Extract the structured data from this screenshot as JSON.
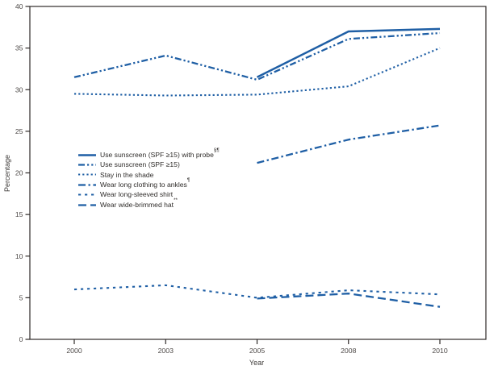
{
  "chart_data": {
    "type": "line",
    "title": "",
    "xlabel": "Year",
    "ylabel": "Percentage",
    "categories": [
      "2000",
      "2003",
      "2005",
      "2008",
      "2010"
    ],
    "ylim": [
      0,
      40
    ],
    "yticks": [
      0,
      5,
      10,
      15,
      20,
      25,
      30,
      35,
      40
    ],
    "grid": false,
    "legend_position": "inside-left-middle",
    "line_color": "#1f5fa5",
    "axis_color": "#2e2a28",
    "series": [
      {
        "id": "sunscreen-probe",
        "label": "Use sunscreen (SPF ≥15) with probe",
        "sup": "§¶",
        "dash": "",
        "width": 2.5,
        "values": [
          null,
          null,
          31.5,
          37.0,
          37.3
        ]
      },
      {
        "id": "sunscreen",
        "label": "Use sunscreen (SPF ≥15)",
        "sup": "",
        "dash": "8 3 2.2 3 2.2 3",
        "width": 2.3,
        "values": [
          31.5,
          34.1,
          31.2,
          36.1,
          36.8
        ]
      },
      {
        "id": "stay-in-shade",
        "label": "Stay in the shade",
        "sup": "",
        "dash": "2.2 3",
        "width": 2.1,
        "values": [
          29.5,
          29.3,
          29.4,
          30.4,
          35.0
        ]
      },
      {
        "id": "long-clothing-ankles",
        "label": "Wear long clothing to ankles",
        "sup": "¶",
        "dash": "9 3.5 2.4 3.5",
        "width": 2.3,
        "values": [
          null,
          null,
          21.2,
          24.0,
          25.7
        ]
      },
      {
        "id": "long-sleeved-shirt",
        "label": "Wear long-sleeved shirt",
        "sup": "",
        "dash": "3.2 4.8",
        "width": 2.1,
        "values": [
          6.0,
          6.5,
          5.0,
          5.9,
          5.4
        ]
      },
      {
        "id": "wide-brimmed-hat",
        "label": "Wear wide-brimmed hat",
        "sup": "**",
        "dash": "10 5",
        "width": 2.3,
        "values": [
          null,
          null,
          4.9,
          5.5,
          3.9
        ]
      }
    ]
  }
}
